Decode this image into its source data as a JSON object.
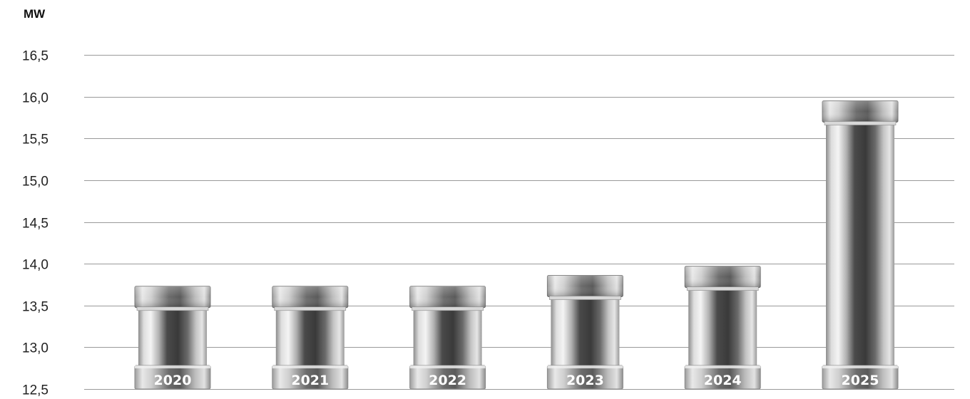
{
  "chart_data": {
    "type": "bar",
    "ylabel": "MW",
    "ylim": [
      12.5,
      16.5
    ],
    "yticks": [
      "12,5",
      "13,0",
      "13,5",
      "14,0",
      "14,5",
      "15,0",
      "15,5",
      "16,0",
      "16,5"
    ],
    "ytick_values": [
      12.5,
      13.0,
      13.5,
      14.0,
      14.5,
      15.0,
      15.5,
      16.0,
      16.5
    ],
    "categories": [
      "2020",
      "2021",
      "2022",
      "2023",
      "2024",
      "2025"
    ],
    "values": [
      13.73,
      13.73,
      13.73,
      13.86,
      13.97,
      15.95
    ],
    "grid": true,
    "legend": "none",
    "colors": {
      "gridline": "#9a9a9a",
      "cylinder_dark": "#3a3a3a",
      "cylinder_light": "#f2f2f2",
      "cap_mid": "#8a8a8a",
      "label": "#ffffff"
    }
  }
}
